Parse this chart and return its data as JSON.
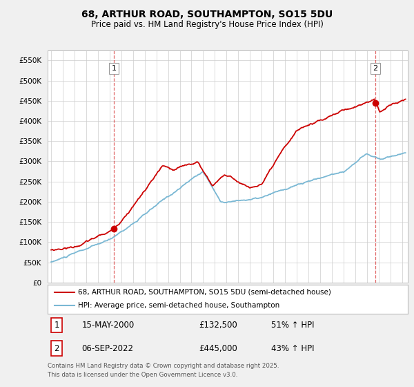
{
  "title": "68, ARTHUR ROAD, SOUTHAMPTON, SO15 5DU",
  "subtitle": "Price paid vs. HM Land Registry's House Price Index (HPI)",
  "legend_line1": "68, ARTHUR ROAD, SOUTHAMPTON, SO15 5DU (semi-detached house)",
  "legend_line2": "HPI: Average price, semi-detached house, Southampton",
  "annotation1_label": "1",
  "annotation1_date": "15-MAY-2000",
  "annotation1_price": "£132,500",
  "annotation1_hpi": "51% ↑ HPI",
  "annotation2_label": "2",
  "annotation2_date": "06-SEP-2022",
  "annotation2_price": "£445,000",
  "annotation2_hpi": "43% ↑ HPI",
  "footer": "Contains HM Land Registry data © Crown copyright and database right 2025.\nThis data is licensed under the Open Government Licence v3.0.",
  "red_color": "#cc0000",
  "blue_color": "#7ab8d4",
  "bg_color": "#f0f0f0",
  "plot_bg": "#ffffff",
  "grid_color": "#cccccc",
  "ylim_min": 0,
  "ylim_max": 575000,
  "ytick_step": 50000,
  "xstart_year": 1994.7,
  "xend_year": 2025.5
}
